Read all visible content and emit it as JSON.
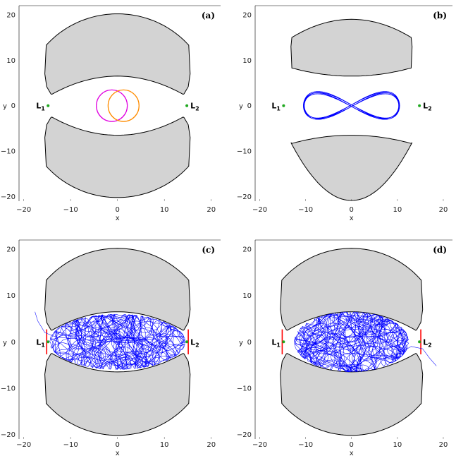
{
  "chart_data": [
    {
      "type": "scatter",
      "panel_label": "(a)",
      "xlabel": "x",
      "ylabel": "y",
      "xlim": [
        -21,
        22
      ],
      "ylim": [
        -21,
        22
      ],
      "xticks": [
        -20,
        -10,
        0,
        10,
        20
      ],
      "yticks": [
        -20,
        -10,
        0,
        10,
        20
      ],
      "lagrange_points": [
        {
          "name": "L",
          "sub": "1",
          "x": -14.8,
          "y": 0,
          "color": "#1fa81f"
        },
        {
          "name": "L",
          "sub": "2",
          "x": 14.8,
          "y": 0,
          "color": "#1fa81f"
        }
      ],
      "forbidden_region": {
        "fill": "#d3d3d3",
        "gap_outer": 2.5,
        "gap_inner": 6.5
      },
      "orbits": [
        {
          "kind": "circle",
          "cx": -1.2,
          "cy": 0,
          "r": 3.3,
          "color": "#e000e0"
        },
        {
          "kind": "circle",
          "cx": 1.3,
          "cy": 0,
          "r": 3.3,
          "color": "#ff8c00"
        }
      ]
    },
    {
      "type": "scatter",
      "panel_label": "(b)",
      "xlabel": "x",
      "ylabel": "y",
      "xlim": [
        -21,
        22
      ],
      "ylim": [
        -21,
        22
      ],
      "xticks": [
        -20,
        -10,
        0,
        10,
        20
      ],
      "yticks": [
        -20,
        -10,
        0,
        10,
        20
      ],
      "lagrange_points": [
        {
          "name": "L",
          "sub": "1",
          "x": -14.8,
          "y": 0,
          "color": "#1fa81f"
        },
        {
          "name": "L",
          "sub": "2",
          "x": 14.8,
          "y": 0,
          "color": "#1fa81f"
        }
      ],
      "forbidden_region": {
        "fill": "#d3d3d3",
        "lobe_inner": 6.5,
        "lobe_outer": 15
      },
      "orbits": [
        {
          "kind": "figure8",
          "a": 10.5,
          "b": 3.0,
          "color": "#0000ff"
        }
      ]
    },
    {
      "type": "scatter",
      "panel_label": "(c)",
      "xlabel": "x",
      "ylabel": "y",
      "xlim": [
        -21,
        22
      ],
      "ylim": [
        -21,
        22
      ],
      "xticks": [
        -20,
        -10,
        0,
        10,
        20
      ],
      "yticks": [
        -20,
        -10,
        0,
        10,
        20
      ],
      "lagrange_points": [
        {
          "name": "L",
          "sub": "1",
          "x": -14.8,
          "y": 0,
          "color": "#1fa81f"
        },
        {
          "name": "L",
          "sub": "2",
          "x": 14.8,
          "y": 0,
          "color": "#1fa81f"
        }
      ],
      "forbidden_region": {
        "fill": "#d3d3d3",
        "gap_outer": 2.5,
        "gap_inner": 6.5
      },
      "exit_segments_color": "#ff0000",
      "orbits": [
        {
          "kind": "chaotic",
          "rx": 14.5,
          "ry": 6.0,
          "color": "#0000ff",
          "escape": "left"
        }
      ]
    },
    {
      "type": "scatter",
      "panel_label": "(d)",
      "xlabel": "x",
      "ylabel": "y",
      "xlim": [
        -21,
        22
      ],
      "ylim": [
        -21,
        22
      ],
      "xticks": [
        -20,
        -10,
        0,
        10,
        20
      ],
      "yticks": [
        -20,
        -10,
        0,
        10,
        20
      ],
      "lagrange_points": [
        {
          "name": "L",
          "sub": "1",
          "x": -14.8,
          "y": 0,
          "color": "#1fa81f"
        },
        {
          "name": "L",
          "sub": "2",
          "x": 14.8,
          "y": 0,
          "color": "#1fa81f"
        }
      ],
      "forbidden_region": {
        "fill": "#d3d3d3",
        "gap_outer": 2.5,
        "gap_inner": 6.5
      },
      "exit_segments_color": "#ff0000",
      "orbits": [
        {
          "kind": "chaotic",
          "rx": 12.5,
          "ry": 6.5,
          "color": "#0000ff",
          "escape": "right"
        }
      ]
    }
  ]
}
